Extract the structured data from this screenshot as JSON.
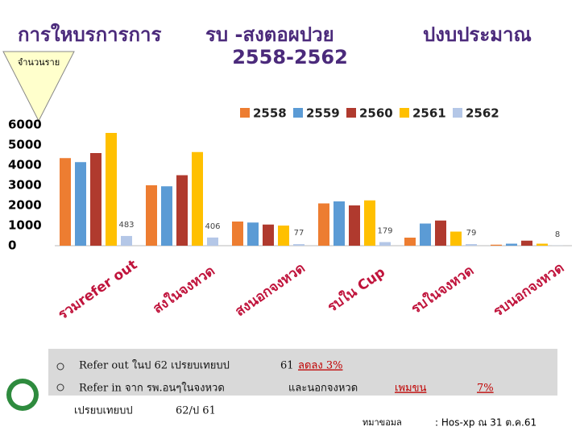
{
  "header": {
    "title_left": "การใหบรการการ",
    "title_mid": "รบ -สงตอผปวย",
    "title_right": "ปงบประมาณ",
    "years": "2558-2562"
  },
  "callout": "จำนวนราย",
  "chart_data": {
    "type": "bar",
    "categories": [
      "รวมrefer out",
      "สงในจงหวด",
      "สงนอกจงหวด",
      "รบใน Cup",
      "รบในจงหวด",
      "รบนอกจงหวด"
    ],
    "series": [
      {
        "name": "2558",
        "color": "#ed7d31",
        "values": [
          4350,
          3000,
          1200,
          2100,
          400,
          50
        ]
      },
      {
        "name": "2559",
        "color": "#5b9bd5",
        "values": [
          4150,
          2950,
          1150,
          2200,
          1100,
          100
        ]
      },
      {
        "name": "2560",
        "color": "#b03a2e",
        "values": [
          4600,
          3500,
          1050,
          2000,
          1250,
          250
        ]
      },
      {
        "name": "2561",
        "color": "#ffc000",
        "values": [
          5600,
          4650,
          1000,
          2250,
          700,
          100
        ]
      },
      {
        "name": "2562",
        "color": "#b4c7e7",
        "values": [
          483,
          406,
          77,
          179,
          79,
          8
        ]
      }
    ],
    "ylim": [
      0,
      6000
    ],
    "yticks": [
      0,
      1000,
      2000,
      3000,
      4000,
      5000,
      6000
    ],
    "legend": "top",
    "labeled_series": 4
  },
  "notes": {
    "line1": [
      "Refer out ในป  62 เปรยบเทยบป",
      "61",
      "ลดลง 3%"
    ],
    "line2": [
      "Refer in  จาก รพ.อนๆในจงหวด",
      "และนอกจงหวด",
      "เพมขน",
      "7%"
    ],
    "line3": [
      "เปรยบเทยบป",
      "62/ป  61"
    ]
  },
  "source": [
    "ทมาขอมล",
    ":  Hos-xp ณ 31 ต.ค.61"
  ]
}
